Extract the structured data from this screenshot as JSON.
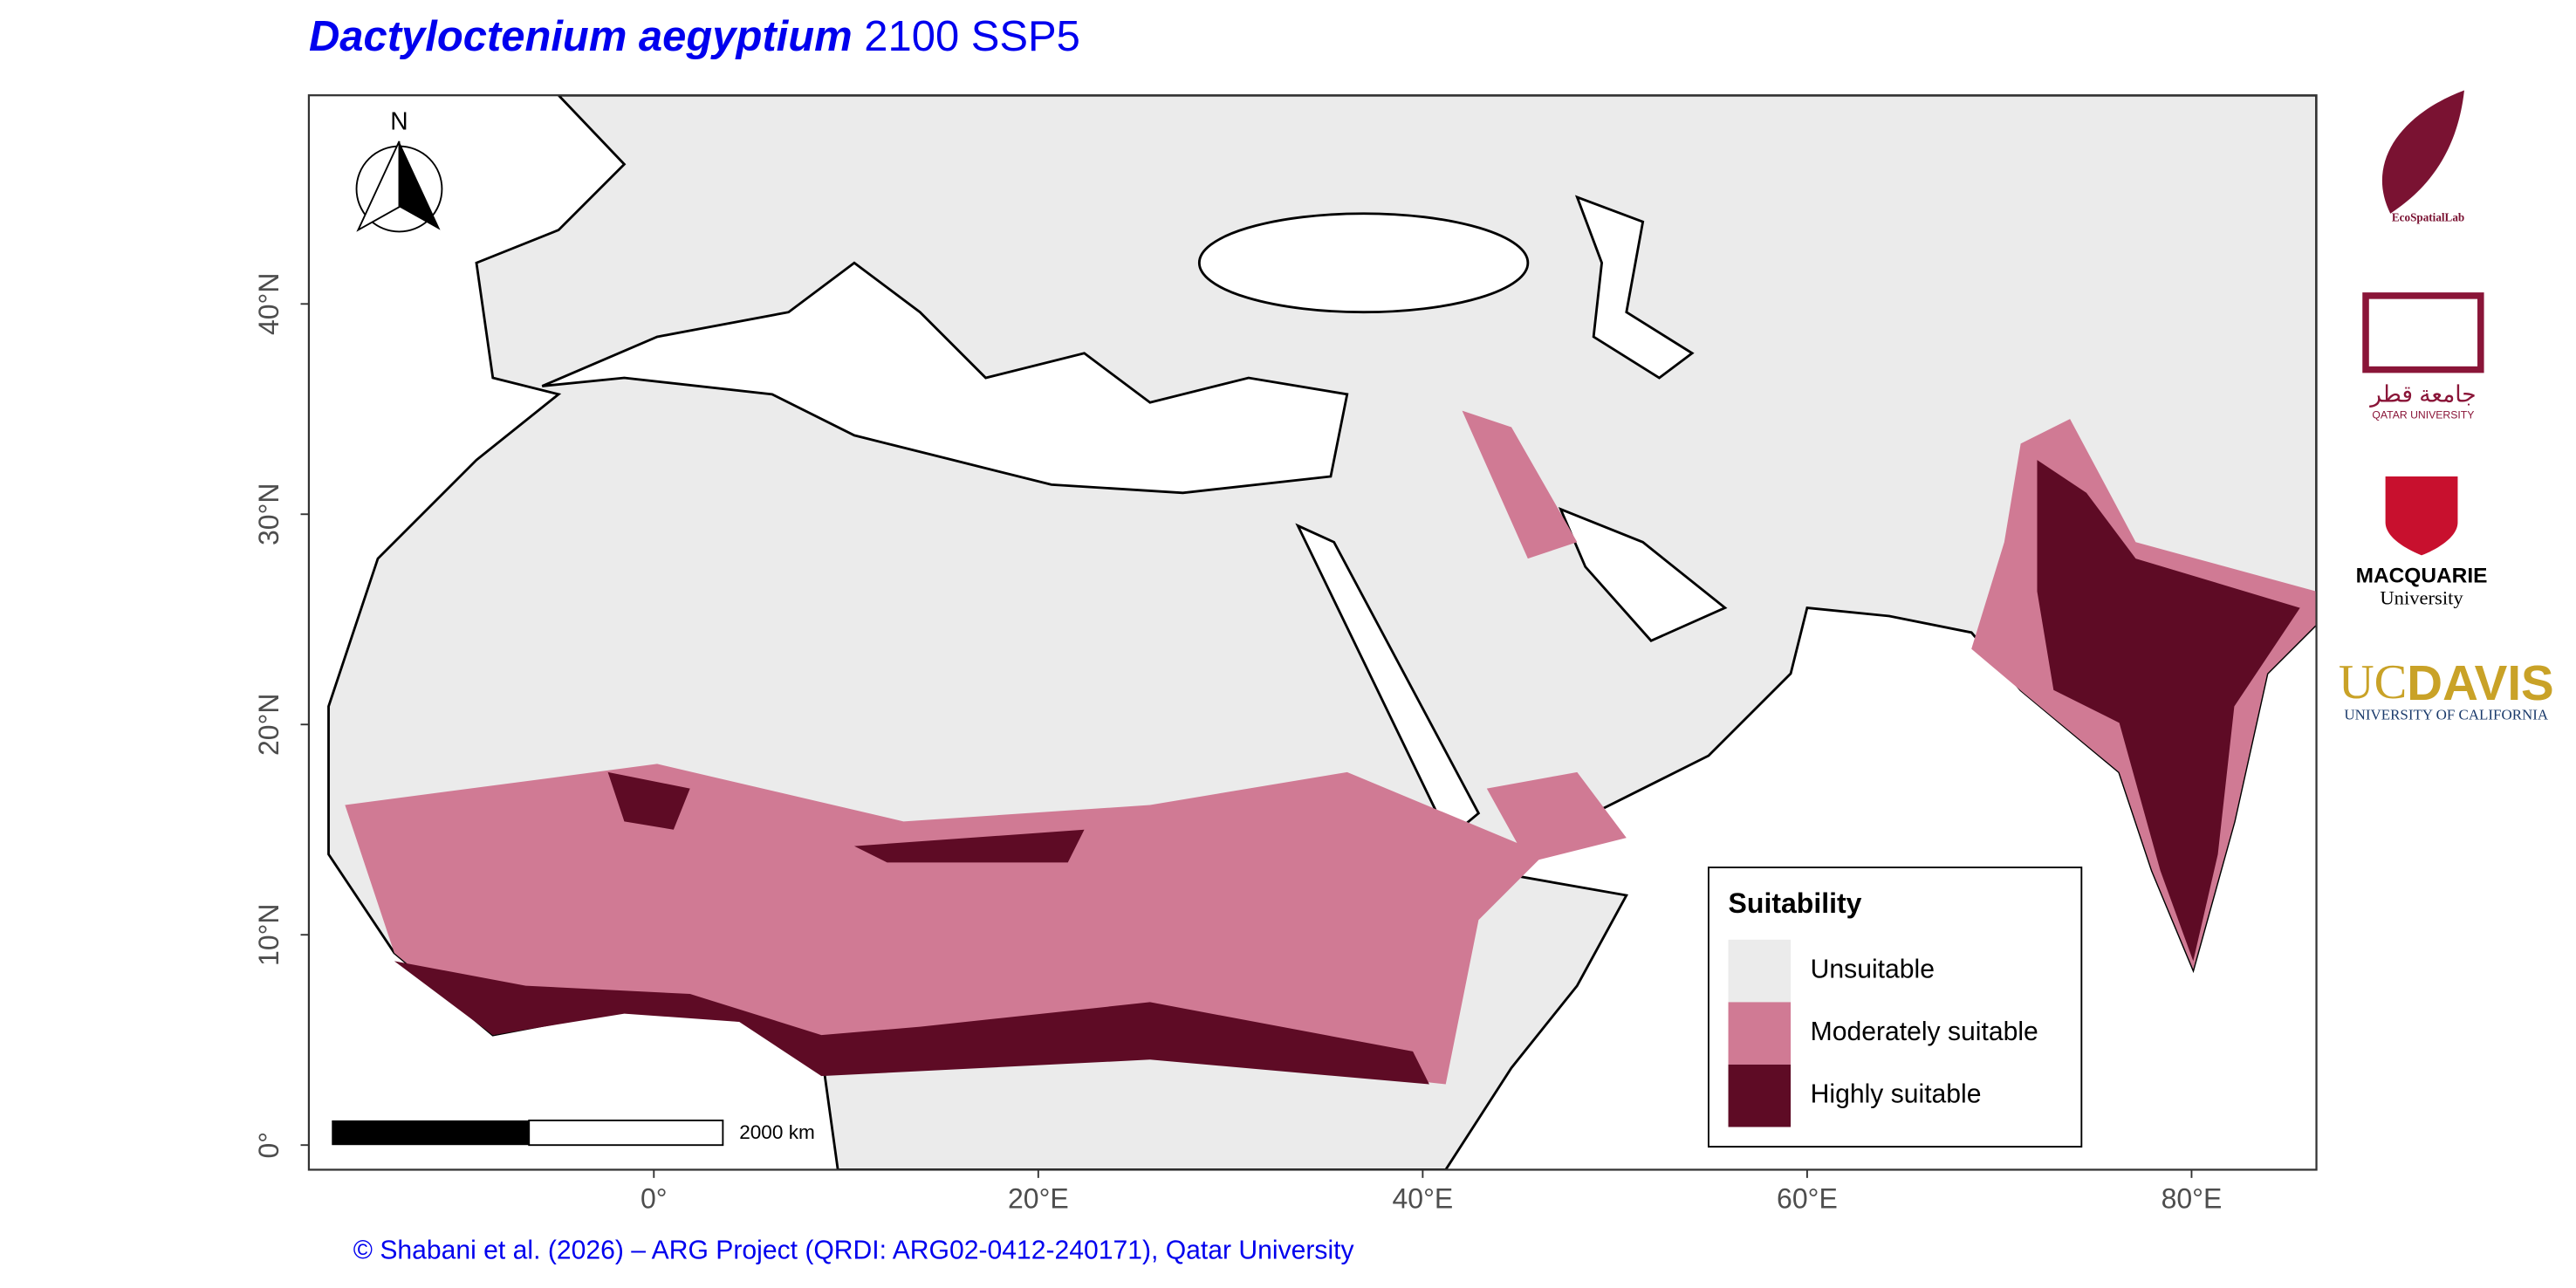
{
  "title": {
    "species": "Dactyloctenium aegyptium",
    "scenario": "2100 SSP5"
  },
  "map": {
    "x_ticks": [
      {
        "value": 0,
        "label": "0°"
      },
      {
        "value": 20,
        "label": "20°E"
      },
      {
        "value": 40,
        "label": "40°E"
      },
      {
        "value": 60,
        "label": "60°E"
      },
      {
        "value": 80,
        "label": "80°E"
      }
    ],
    "y_ticks": [
      {
        "value": 0,
        "label": "0°"
      },
      {
        "value": 10,
        "label": "10°N"
      },
      {
        "value": 20,
        "label": "20°N"
      },
      {
        "value": 30,
        "label": "30°N"
      },
      {
        "value": 40,
        "label": "40°N"
      }
    ],
    "north": "N",
    "scale_bar": "2000 km"
  },
  "legend": {
    "title": "Suitability",
    "items": [
      {
        "label": "Unsuitable",
        "color": "#ebebeb"
      },
      {
        "label": "Moderately suitable",
        "color": "#d07a94"
      },
      {
        "label": "Highly suitable",
        "color": "#5e0b25"
      }
    ]
  },
  "caption": "© Shabani et al. (2026) – ARG Project (QRDI: ARG02-0412-240171), Qatar University",
  "logos": {
    "ecospatial": "EcoSpatialLab",
    "qatar_arabic": "جامعة قطر",
    "qatar": "QATAR UNIVERSITY",
    "macquarie": "MACQUARIE",
    "macquarie_sub": "University",
    "uc": "UC",
    "davis": "DAVIS",
    "uc_sub": "UNIVERSITY OF CALIFORNIA"
  }
}
